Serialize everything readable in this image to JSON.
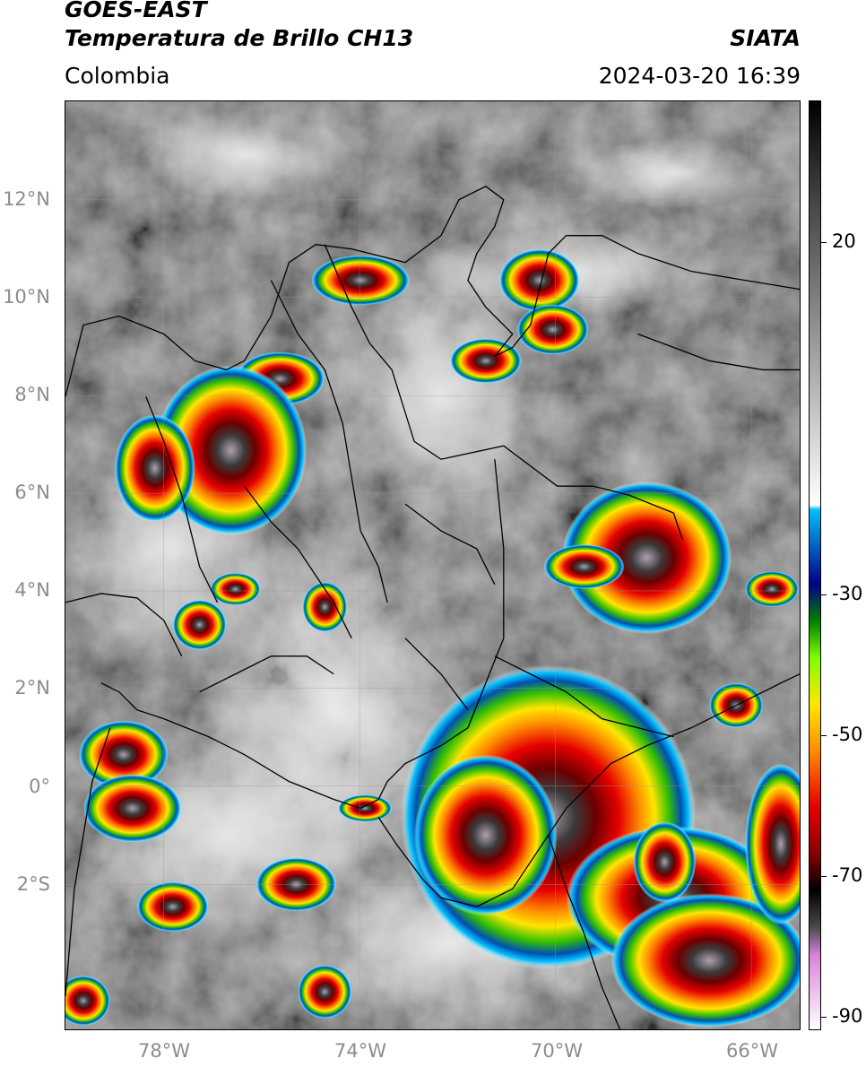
{
  "header": {
    "satellite": "GOES-EAST",
    "product": "Temperatura de Brillo CH13",
    "region": "Colombia",
    "agency": "SIATA",
    "datetime": "2024-03-20 16:39"
  },
  "map": {
    "lat_labels": [
      "12°N",
      "10°N",
      "8°N",
      "6°N",
      "4°N",
      "2°N",
      "0°",
      "2°S"
    ],
    "lon_labels": [
      "78°W",
      "74°W",
      "70°W",
      "66°W"
    ],
    "background_color": "#6b6b6b",
    "border_color": "#000000"
  },
  "colorbar": {
    "labels": [
      "20",
      "-30",
      "-50",
      "-70",
      "-90"
    ],
    "palette": [
      "#ffffff",
      "#d982d9",
      "#4a4a4a",
      "#000000",
      "#8b0000",
      "#e60000",
      "#ff8c00",
      "#ffe600",
      "#7fff00",
      "#008000",
      "#00008b",
      "#0060c0",
      "#00c0ff",
      "#ffffff",
      "#b0b0b0",
      "#404040",
      "#000000"
    ]
  }
}
